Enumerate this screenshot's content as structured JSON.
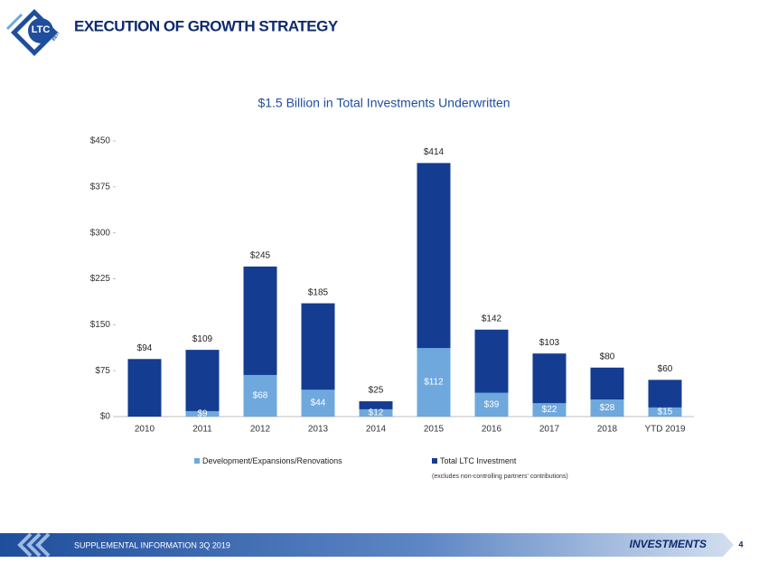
{
  "header": {
    "title": "EXECUTION OF GROWTH STRATEGY",
    "logo": "LTC",
    "logo_sub": "REIT"
  },
  "chart_data": {
    "type": "bar",
    "title": "$1.5 Billion in Total Investments Underwritten",
    "categories": [
      "2010",
      "2011",
      "2012",
      "2013",
      "2014",
      "2015",
      "2016",
      "2017",
      "2018",
      "YTD 2019"
    ],
    "series": [
      {
        "name": "Development/Expansions/Renovations",
        "color": "#6fa8dc",
        "values": [
          null,
          9,
          68,
          44,
          12,
          112,
          39,
          22,
          28,
          15
        ],
        "value_labels": [
          null,
          "$9",
          "$68",
          "$44",
          "$12",
          "$112",
          "$39",
          "$22",
          "$28",
          "$15"
        ]
      },
      {
        "name": "Total LTC Investment",
        "color": "#143c91",
        "values": [
          94,
          109,
          245,
          185,
          25,
          414,
          142,
          103,
          80,
          60
        ],
        "value_labels": [
          "$94",
          "$109",
          "$245",
          "$185",
          "$25",
          "$414",
          "$142",
          "$103",
          "$80",
          "$60"
        ]
      }
    ],
    "ylim": [
      0,
      450
    ],
    "yticks": [
      {
        "value": 0,
        "label": "$0"
      },
      {
        "value": 75,
        "label": "$75"
      },
      {
        "value": 150,
        "label": "$150"
      },
      {
        "value": 225,
        "label": "$225"
      },
      {
        "value": 300,
        "label": "$300"
      },
      {
        "value": 375,
        "label": "$375"
      },
      {
        "value": 450,
        "label": "$450"
      }
    ],
    "grid": false,
    "note": "(excludes non-controlling partners' contributions)"
  },
  "footer": {
    "left": "SUPPLEMENTAL INFORMATION 3Q 2019",
    "section": "INVESTMENTS",
    "page": 4
  }
}
